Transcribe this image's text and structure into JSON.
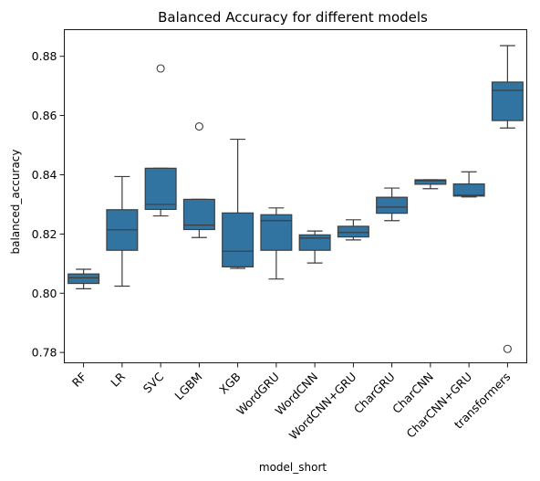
{
  "chart_data": {
    "type": "boxplot",
    "title": "Balanced Accuracy for different models",
    "xlabel": "model_short",
    "ylabel": "balanced_accuracy",
    "ylim": [
      0.7765,
      0.889
    ],
    "yticks": [
      0.78,
      0.8,
      0.82,
      0.84,
      0.86,
      0.88
    ],
    "ytick_labels": [
      "0.78",
      "0.80",
      "0.82",
      "0.84",
      "0.86",
      "0.88"
    ],
    "box_color": "#3274a1",
    "edge_color": "#3d3d3d",
    "grid": false,
    "categories": [
      "RF",
      "LR",
      "SVC",
      "LGBM",
      "XGB",
      "WordGRU",
      "WordCNN",
      "WordCNN+GRU",
      "CharGRU",
      "CharCNN",
      "CharCNN+GRU",
      "transformers"
    ],
    "boxes": [
      {
        "category": "RF",
        "whislo": 0.8015,
        "q1": 0.8033,
        "med": 0.8052,
        "q3": 0.8065,
        "whishi": 0.8081,
        "fliers": []
      },
      {
        "category": "LR",
        "whislo": 0.8024,
        "q1": 0.8145,
        "med": 0.8214,
        "q3": 0.8282,
        "whishi": 0.8394,
        "fliers": []
      },
      {
        "category": "SVC",
        "whislo": 0.8261,
        "q1": 0.8283,
        "med": 0.83,
        "q3": 0.8422,
        "whishi": 0.8422,
        "fliers": [
          0.8759
        ]
      },
      {
        "category": "LGBM",
        "whislo": 0.8188,
        "q1": 0.8215,
        "med": 0.823,
        "q3": 0.8317,
        "whishi": 0.8317,
        "fliers": [
          0.8563
        ]
      },
      {
        "category": "XGB",
        "whislo": 0.8084,
        "q1": 0.8089,
        "med": 0.8142,
        "q3": 0.8271,
        "whishi": 0.852,
        "fliers": []
      },
      {
        "category": "WordGRU",
        "whislo": 0.8048,
        "q1": 0.8145,
        "med": 0.8245,
        "q3": 0.8265,
        "whishi": 0.8288,
        "fliers": []
      },
      {
        "category": "WordCNN",
        "whislo": 0.8102,
        "q1": 0.8145,
        "med": 0.8186,
        "q3": 0.8197,
        "whishi": 0.821,
        "fliers": []
      },
      {
        "category": "WordCNN+GRU",
        "whislo": 0.818,
        "q1": 0.819,
        "med": 0.8205,
        "q3": 0.8226,
        "whishi": 0.8248,
        "fliers": []
      },
      {
        "category": "CharGRU",
        "whislo": 0.8245,
        "q1": 0.827,
        "med": 0.8291,
        "q3": 0.8324,
        "whishi": 0.8355,
        "fliers": []
      },
      {
        "category": "CharCNN",
        "whislo": 0.8353,
        "q1": 0.8368,
        "med": 0.838,
        "q3": 0.8383,
        "whishi": 0.8383,
        "fliers": []
      },
      {
        "category": "CharCNN+GRU",
        "whislo": 0.8325,
        "q1": 0.8328,
        "med": 0.8331,
        "q3": 0.8369,
        "whishi": 0.841,
        "fliers": []
      },
      {
        "category": "transformers",
        "whislo": 0.8558,
        "q1": 0.8583,
        "med": 0.8685,
        "q3": 0.8713,
        "whishi": 0.8836,
        "fliers": [
          0.7812
        ]
      }
    ]
  }
}
